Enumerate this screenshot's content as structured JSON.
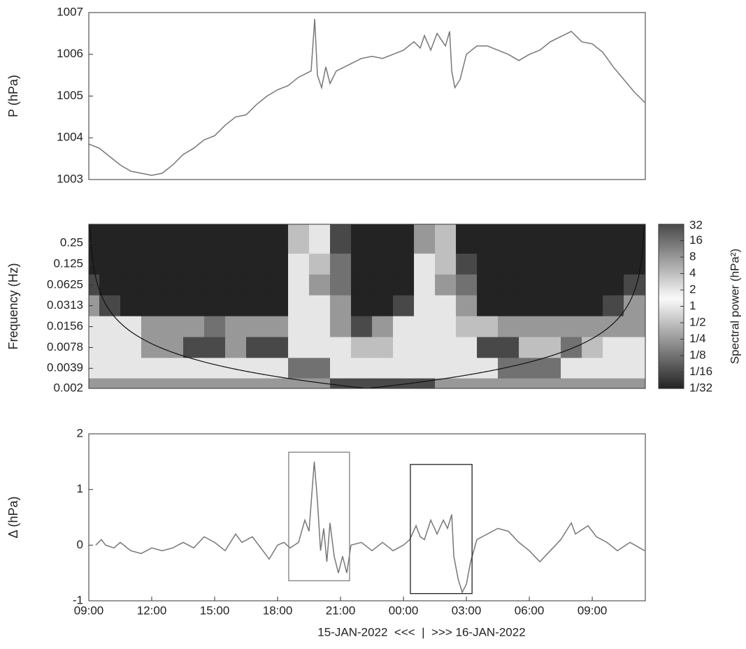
{
  "chart_data": [
    {
      "type": "line",
      "y_label": "P (hPa)",
      "color": "#777777",
      "xlim": [
        0,
        26.53
      ],
      "ylim": [
        1003,
        1007
      ],
      "yticks": [
        1003,
        1004,
        1005,
        1006,
        1007
      ],
      "x": [
        0,
        0.5,
        1,
        1.5,
        2,
        2.5,
        3,
        3.5,
        4,
        4.5,
        5,
        5.5,
        6,
        6.5,
        7,
        7.5,
        8,
        8.5,
        9,
        9.5,
        10,
        10.6,
        10.77,
        10.9,
        11.1,
        11.3,
        11.5,
        11.8,
        12.2,
        12.6,
        13,
        13.5,
        14,
        14.5,
        15,
        15.5,
        15.8,
        16,
        16.3,
        16.6,
        17,
        17.2,
        17.3,
        17.45,
        17.7,
        18,
        18.5,
        19,
        19.5,
        20,
        20.5,
        21,
        21.5,
        22,
        23,
        23.5,
        24,
        24.5,
        25,
        25.5,
        26,
        26.5
      ],
      "values": [
        1003.85,
        1003.75,
        1003.55,
        1003.35,
        1003.2,
        1003.15,
        1003.1,
        1003.15,
        1003.35,
        1003.6,
        1003.75,
        1003.95,
        1004.05,
        1004.3,
        1004.5,
        1004.55,
        1004.8,
        1005.0,
        1005.15,
        1005.25,
        1005.45,
        1005.6,
        1006.85,
        1005.5,
        1005.2,
        1005.7,
        1005.3,
        1005.6,
        1005.7,
        1005.8,
        1005.9,
        1005.95,
        1005.9,
        1006.0,
        1006.1,
        1006.3,
        1006.15,
        1006.45,
        1006.1,
        1006.5,
        1006.2,
        1006.55,
        1005.6,
        1005.2,
        1005.4,
        1006.0,
        1006.2,
        1006.2,
        1006.1,
        1006.0,
        1005.85,
        1006.0,
        1006.1,
        1006.3,
        1006.55,
        1006.3,
        1006.25,
        1006.05,
        1005.7,
        1005.4,
        1005.1,
        1004.85
      ]
    },
    {
      "type": "heatmap",
      "y_label": "Frequency (Hz)",
      "log_y": true,
      "xlim": [
        0,
        26.53
      ],
      "ylim": [
        0.002,
        0.47
      ],
      "yticks": [
        0.25,
        0.125,
        0.0625,
        0.0313,
        0.0156,
        0.0078,
        0.0039,
        0.002
      ],
      "x": [
        0,
        1,
        2,
        3,
        4,
        5,
        6,
        7,
        8,
        9,
        10,
        11,
        12,
        13,
        14,
        15,
        16,
        17,
        18,
        19,
        20,
        21,
        22,
        23,
        24,
        25,
        26
      ],
      "y": [
        0.25,
        0.125,
        0.0625,
        0.0313,
        0.0156,
        0.0078,
        0.0039,
        0.002
      ],
      "values": [
        [
          0.03,
          0.03,
          0.03,
          0.03,
          0.03,
          0.03,
          0.03,
          0.03,
          0.03,
          0.03,
          0.5,
          1,
          0.06,
          0.03,
          0.03,
          0.03,
          0.25,
          0.5,
          0.03,
          0.03,
          0.03,
          0.03,
          0.03,
          0.03,
          0.03,
          0.03,
          0.03
        ],
        [
          0.03,
          0.03,
          0.03,
          0.03,
          0.03,
          0.03,
          0.03,
          0.03,
          0.03,
          0.03,
          2,
          4,
          0.125,
          0.03,
          0.03,
          0.03,
          1,
          4,
          0.06,
          0.03,
          0.03,
          0.03,
          0.03,
          0.03,
          0.03,
          0.03,
          0.03
        ],
        [
          0.06,
          0.03,
          0.03,
          0.03,
          0.03,
          0.03,
          0.03,
          0.03,
          0.03,
          0.03,
          2,
          8,
          0.125,
          0.03,
          0.03,
          0.03,
          2,
          8,
          0.125,
          0.03,
          0.03,
          0.03,
          0.03,
          0.03,
          0.03,
          0.03,
          0.06
        ],
        [
          0.25,
          0.06,
          0.03,
          0.03,
          0.03,
          0.03,
          0.03,
          0.03,
          0.03,
          0.03,
          2,
          2,
          0.25,
          0.03,
          0.03,
          0.06,
          1,
          2,
          0.25,
          0.03,
          0.03,
          0.03,
          0.03,
          0.03,
          0.03,
          0.06,
          0.25
        ],
        [
          1,
          1,
          1,
          0.25,
          0.25,
          0.25,
          0.125,
          0.25,
          0.25,
          0.25,
          1,
          1,
          0.25,
          0.0625,
          0.25,
          2,
          2,
          2,
          0.5,
          0.5,
          0.25,
          0.25,
          0.25,
          0.25,
          0.25,
          0.25,
          0.25
        ],
        [
          2,
          2,
          1,
          0.25,
          0.25,
          0.0625,
          0.0625,
          0.25,
          0.06,
          0.06,
          1,
          1,
          1,
          0.5,
          0.5,
          2,
          2,
          2,
          1,
          0.06,
          0.06,
          0.5,
          0.5,
          0.125,
          0.5,
          1,
          1
        ],
        [
          2,
          2,
          2,
          1,
          1,
          1,
          1,
          1,
          1,
          1,
          0.125,
          0.125,
          1,
          1,
          1,
          1,
          1,
          2,
          1,
          1,
          0.125,
          0.125,
          0.125,
          2,
          2,
          2,
          2
        ],
        [
          0.25,
          0.25,
          0.25,
          0.25,
          0.25,
          0.25,
          0.25,
          0.25,
          0.25,
          0.25,
          0.25,
          0.25,
          0.0625,
          0.0625,
          0.0625,
          0.0625,
          0.0625,
          0.25,
          0.25,
          0.25,
          0.25,
          0.25,
          0.25,
          0.25,
          0.25,
          0.25,
          0.25
        ]
      ],
      "colorbar": {
        "label": "Spectral power (hPa²)",
        "lim": [
          0.03125,
          32
        ],
        "ticks": [
          32,
          16,
          8,
          4,
          2,
          1,
          {
            "value": 0.5,
            "label": "1/2"
          },
          {
            "value": 0.25,
            "label": "1/4"
          },
          {
            "value": 0.125,
            "label": "1/8"
          },
          {
            "value": 0.0625,
            "label": "1/16"
          },
          {
            "value": 0.03125,
            "label": "1/32"
          }
        ]
      }
    },
    {
      "type": "line",
      "y_label": "Δ (hPa)",
      "x_label": "15-JAN-2022  <<<  |  >>> 16-JAN-2022",
      "color": "#777777",
      "xlim": [
        0,
        26.53
      ],
      "ylim": [
        -1,
        2
      ],
      "yticks": [
        -1,
        0,
        1,
        2
      ],
      "xticks": [
        {
          "value": 0,
          "label": "09:00"
        },
        {
          "value": 3,
          "label": "12:00"
        },
        {
          "value": 6,
          "label": "15:00"
        },
        {
          "value": 9,
          "label": "18:00"
        },
        {
          "value": 12,
          "label": "21:00"
        },
        {
          "value": 15,
          "label": "00:00"
        },
        {
          "value": 18,
          "label": "03:00"
        },
        {
          "value": 21,
          "label": "06:00"
        },
        {
          "value": 24,
          "label": "09:00"
        }
      ],
      "x": [
        0.33,
        0.6,
        0.8,
        1.2,
        1.5,
        2,
        2.5,
        3,
        3.5,
        4,
        4.5,
        5,
        5.5,
        6,
        6.5,
        7,
        7.3,
        7.8,
        8.3,
        8.6,
        9,
        9.3,
        9.6,
        10,
        10.3,
        10.5,
        10.75,
        10.9,
        11.05,
        11.2,
        11.35,
        11.5,
        11.7,
        11.9,
        12.1,
        12.3,
        12.5,
        13,
        13.5,
        14,
        14.5,
        15,
        15.3,
        15.6,
        15.8,
        16,
        16.3,
        16.6,
        16.9,
        17.1,
        17.3,
        17.4,
        17.6,
        17.8,
        18,
        18.2,
        18.5,
        19,
        19.5,
        20,
        20.5,
        21,
        21.5,
        22,
        22.5,
        23,
        23.2,
        23.8,
        24.2,
        24.7,
        25.2,
        25.8,
        26.5
      ],
      "values": [
        0,
        0.1,
        0,
        -0.05,
        0.05,
        -0.1,
        -0.15,
        -0.05,
        -0.1,
        -0.05,
        0.05,
        -0.05,
        0.15,
        0.05,
        -0.1,
        0.2,
        0.05,
        0.15,
        -0.1,
        -0.25,
        0,
        0.05,
        -0.05,
        0.05,
        0.45,
        0.25,
        1.5,
        0.8,
        -0.1,
        0.3,
        -0.3,
        0.4,
        -0.2,
        -0.5,
        -0.2,
        -0.5,
        0,
        0.05,
        -0.1,
        0.05,
        -0.1,
        0,
        0.1,
        0.35,
        0.15,
        0.1,
        0.45,
        0.2,
        0.45,
        0.3,
        0.55,
        -0.2,
        -0.6,
        -0.85,
        -0.7,
        -0.3,
        0.1,
        0.2,
        0.3,
        0.25,
        0.05,
        -0.1,
        -0.3,
        -0.1,
        0.1,
        0.4,
        0.2,
        0.35,
        0.15,
        0.05,
        -0.1,
        0.05,
        -0.1
      ],
      "boxes": [
        {
          "x": [
            9.53,
            12.43
          ],
          "y": [
            -0.64,
            1.67
          ],
          "color": "#808080"
        },
        {
          "x": [
            15.33,
            18.27
          ],
          "y": [
            -0.87,
            1.45
          ],
          "color": "#222222"
        }
      ]
    }
  ]
}
